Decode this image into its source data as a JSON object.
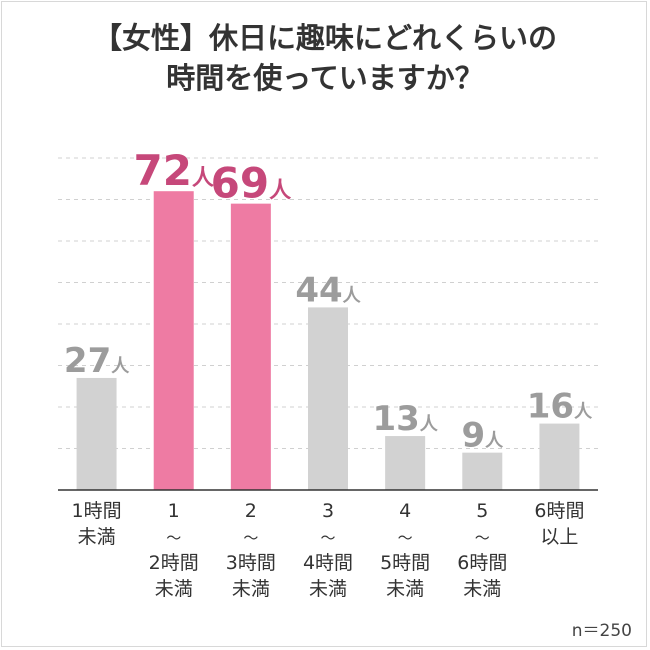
{
  "title": {
    "line1": "【女性】休日に趣味にどれくらいの",
    "line2": "時間を使っていますか？"
  },
  "note": "n＝250",
  "colors": {
    "highlight": "#ee7ba3",
    "highlight_text": "#c6487a",
    "normal": "#d2d2d2",
    "normal_text": "#9c9c9c",
    "grid": "#d0d0d0",
    "axis": "#333333"
  },
  "chart_data": {
    "type": "bar",
    "categories": [
      [
        "1時間",
        "未満"
      ],
      [
        "1",
        "〜",
        "2時間",
        "未満"
      ],
      [
        "2",
        "〜",
        "3時間",
        "未満"
      ],
      [
        "3",
        "〜",
        "4時間",
        "未満"
      ],
      [
        "4",
        "〜",
        "5時間",
        "未満"
      ],
      [
        "5",
        "〜",
        "6時間",
        "未満"
      ],
      [
        "6時間",
        "以上"
      ]
    ],
    "values": [
      27,
      72,
      69,
      44,
      13,
      9,
      16
    ],
    "value_unit": "人",
    "highlighted": [
      false,
      true,
      true,
      false,
      false,
      false,
      false
    ],
    "ylim": [
      0,
      80
    ],
    "grid": true
  }
}
